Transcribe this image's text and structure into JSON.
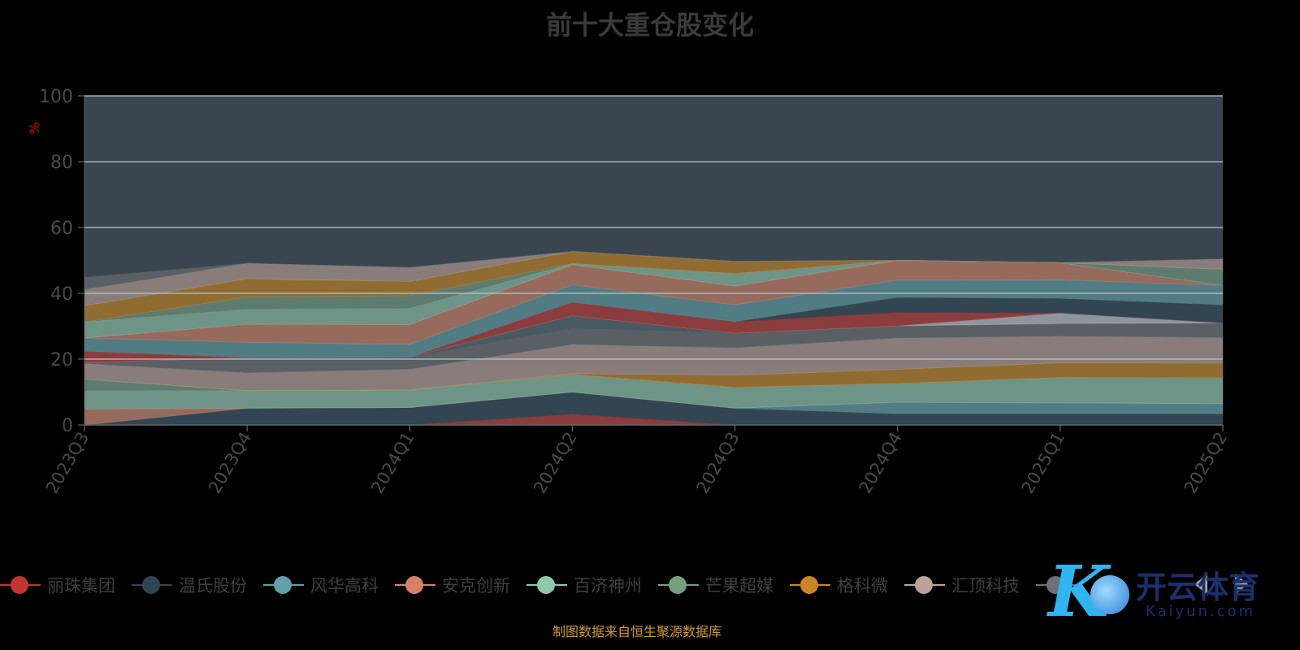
{
  "title": "前十大重仓股变化",
  "source_note": "制图数据来自恒生聚源数据库",
  "watermark": {
    "text_cn": "开云体育",
    "text_en": "Kaiyun.com"
  },
  "colors": {
    "background": "#000000",
    "plot_background": "#3a464f",
    "palette": [
      "#c23531",
      "#2f4554",
      "#61a0a8",
      "#d48265",
      "#91c7ae",
      "#749f83",
      "#ca8622",
      "#bda29a",
      "#6e7074",
      "#546570",
      "#c4ccd3"
    ]
  },
  "chart_data": {
    "type": "area",
    "stacked": true,
    "title": "前十大重仓股变化",
    "xlabel": "",
    "ylabel": "%",
    "ylim": [
      0,
      100
    ],
    "yticks": [
      0,
      20,
      40,
      60,
      80,
      100
    ],
    "grid": true,
    "legend_position": "bottom",
    "categories": [
      "2023Q3",
      "2023Q4",
      "2024Q1",
      "2024Q2",
      "2024Q3",
      "2024Q4",
      "2025Q1",
      "2025Q2"
    ],
    "series": [
      {
        "name": "丽珠集团",
        "values": [
          0,
          0,
          0,
          3.3,
          0,
          0,
          0,
          0
        ]
      },
      {
        "name": "温氏股份",
        "values": [
          0,
          5.1,
          5.3,
          6.7,
          5.1,
          3.4,
          3.4,
          3.4
        ]
      },
      {
        "name": "风华高科",
        "values": [
          0,
          0,
          0,
          0,
          0,
          3.5,
          3.3,
          3.1
        ]
      },
      {
        "name": "安克创新",
        "values": [
          4.8,
          0,
          0,
          0,
          0,
          0,
          0,
          0
        ]
      },
      {
        "name": "百济神州",
        "values": [
          5.6,
          5.3,
          5.3,
          5.3,
          6.3,
          5.7,
          7.7,
          7.8
        ]
      },
      {
        "name": "芒果超媒",
        "values": [
          3.5,
          0,
          0,
          0,
          0,
          0,
          0,
          0
        ]
      },
      {
        "name": "格科微",
        "values": [
          0,
          0,
          0,
          0.3,
          3.7,
          4.3,
          4.5,
          4.5
        ]
      },
      {
        "name": "汇顶科技",
        "values": [
          4.7,
          5.4,
          6.3,
          8.8,
          8.3,
          9.5,
          8,
          7.7
        ]
      },
      {
        "name": "",
        "values": [
          0.3,
          4.7,
          3.7,
          4.9,
          4.5,
          3.7,
          3.9,
          4.5
        ]
      },
      {
        "name": "",
        "values": [
          0,
          0,
          0,
          3.9,
          0,
          0,
          0,
          0
        ]
      },
      {
        "name": "",
        "values": [
          0,
          0,
          0,
          0,
          0,
          0,
          3.2,
          0
        ]
      },
      {
        "name": "",
        "values": [
          3.5,
          0,
          0,
          4.1,
          3.5,
          4.1,
          0,
          0
        ]
      },
      {
        "name": "",
        "values": [
          0,
          0,
          0,
          0,
          0,
          4.6,
          4.5,
          5.5
        ]
      },
      {
        "name": "",
        "values": [
          4,
          4.6,
          3.9,
          5.3,
          5.1,
          5.2,
          5.6,
          5.9
        ]
      },
      {
        "name": "",
        "values": [
          0,
          5.5,
          6,
          6.1,
          5.7,
          6,
          5.2,
          0
        ]
      },
      {
        "name": "",
        "values": [
          4.9,
          4.5,
          4.9,
          0.3,
          3.8,
          0,
          0,
          0
        ]
      },
      {
        "name": "",
        "values": [
          0,
          3.8,
          3.9,
          0,
          0,
          0,
          0,
          4.9
        ]
      },
      {
        "name": "",
        "values": [
          4.9,
          5.5,
          4.3,
          3.7,
          3.7,
          0,
          0,
          0
        ]
      },
      {
        "name": "",
        "values": [
          4.9,
          4.7,
          4.2,
          0,
          0,
          0,
          0,
          3.1
        ]
      },
      {
        "name": "",
        "values": [
          3.7,
          0,
          0,
          0,
          0,
          0,
          0,
          0
        ]
      }
    ]
  },
  "legend": {
    "items": [
      "丽珠集团",
      "温氏股份",
      "风华高科",
      "安克创新",
      "百济神州",
      "芒果超媒",
      "格科微",
      "汇顶科技",
      ""
    ]
  }
}
